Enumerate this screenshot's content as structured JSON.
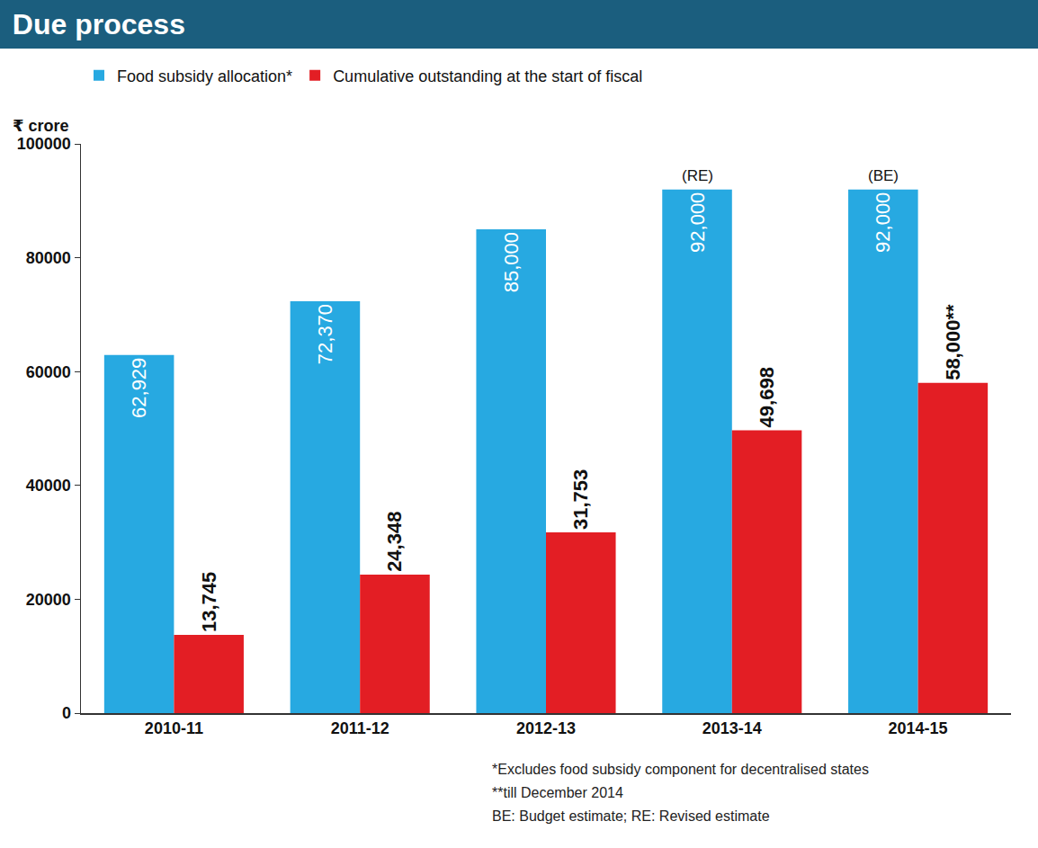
{
  "chart_data": {
    "type": "bar",
    "title": "Due process",
    "y_label": "₹ crore",
    "categories": [
      "2010-11",
      "2011-12",
      "2012-13",
      "2013-14",
      "2014-15"
    ],
    "series": [
      {
        "name": "Food subsidy allocation*",
        "color": "#27a9e1",
        "values": [
          62929,
          72370,
          85000,
          92000,
          92000
        ],
        "value_labels": [
          "62,929",
          "72,370",
          "85,000",
          "92,000",
          "92,000"
        ]
      },
      {
        "name": "Cumulative outstanding at the start of fiscal",
        "color": "#e31e24",
        "values": [
          13745,
          24348,
          31753,
          49698,
          58000
        ],
        "value_labels": [
          "13,745",
          "24,348",
          "31,753",
          "49,698",
          "58,000**"
        ]
      }
    ],
    "annotations": [
      {
        "category": "2013-14",
        "series": "Food subsidy allocation*",
        "text": "(RE)"
      },
      {
        "category": "2014-15",
        "series": "Food subsidy allocation*",
        "text": "(BE)"
      }
    ],
    "notes": [
      "*Excludes food subsidy component for decentralised states",
      "**till December 2014",
      "BE: Budget estimate; RE: Revised estimate"
    ],
    "ylim": [
      0,
      100000
    ],
    "yticks": [
      0,
      20000,
      40000,
      60000,
      80000,
      100000
    ],
    "grid": false,
    "legend": "top left",
    "data_labels": true
  }
}
